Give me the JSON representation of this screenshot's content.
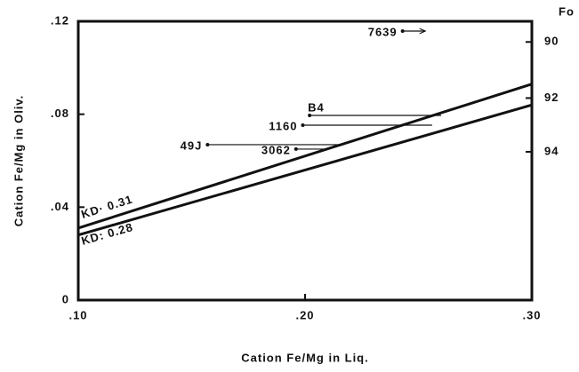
{
  "chart_data": {
    "type": "line",
    "x_label": "Cation Fe/Mg in Liq.",
    "y_label": "Cation Fe/Mg in Oliv.",
    "y2_label": "Fo",
    "xlim": [
      0.1,
      0.3
    ],
    "xticks": [
      {
        "value": 0.1,
        "label": ".10"
      },
      {
        "value": 0.2,
        "label": ".20"
      },
      {
        "value": 0.3,
        "label": ".30"
      }
    ],
    "ylim": [
      0,
      0.12
    ],
    "yticks": [
      0,
      {
        "value": 0.04,
        "label": ".04"
      },
      {
        "value": 0.08,
        "label": ".08"
      },
      {
        "value": 0.12,
        "label": ".12"
      }
    ],
    "y2ticks": [
      90,
      92,
      94
    ],
    "color": "#111111",
    "series": [
      {
        "name": "KD· 0.31",
        "x": [
          0.1,
          0.3
        ],
        "values": [
          0.031,
          0.093
        ]
      },
      {
        "name": "KD: 0.28",
        "x": [
          0.1,
          0.3
        ],
        "values": [
          0.028,
          0.084
        ]
      }
    ],
    "samples": [
      {
        "label": "7639",
        "x": 0.243,
        "x_end": 0.253,
        "y": 0.1158
      },
      {
        "label": "B4",
        "x": 0.202,
        "x_end": 0.26,
        "y": 0.0795
      },
      {
        "label": "1160",
        "x": 0.199,
        "x_end": 0.256,
        "y": 0.0753
      },
      {
        "label": "49J",
        "x": 0.157,
        "x_end": 0.216,
        "y": 0.0669
      },
      {
        "label": "3062",
        "x": 0.196,
        "x_end": 0.209,
        "y": 0.065
      }
    ]
  }
}
